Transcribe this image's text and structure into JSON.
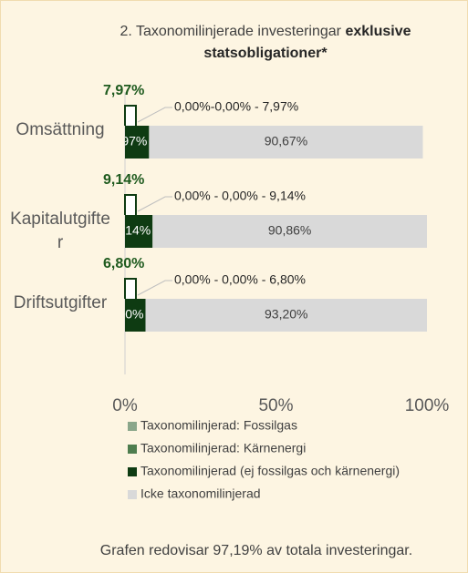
{
  "chart_data": {
    "type": "stacked-bar-horizontal",
    "title": "2. Taxonomilinjerade investeringar",
    "title_bold": "exklusive statsobligationer*",
    "categories": [
      "Omsättning",
      "Kapitalutgifter",
      "Driftsutgifter"
    ],
    "series": [
      {
        "name": "Taxonomilinjerad: Fossilgas",
        "color": "#8aa68a",
        "values": [
          0,
          0,
          0
        ]
      },
      {
        "name": "Taxonomilinjerad: Kärnenergi",
        "color": "#4e7d4e",
        "values": [
          0,
          0,
          0
        ]
      },
      {
        "name": "Taxonomilinjerad (ej fossilgas och kärnenergi)",
        "color": "#0e3b12",
        "values": [
          7.97,
          9.14,
          6.8
        ],
        "value_labels": [
          "7,97%",
          "9,14%",
          "6,80%"
        ]
      },
      {
        "name": "Icke taxonomilinjerad",
        "color": "#d9d9d9",
        "values": [
          90.67,
          90.86,
          93.2
        ],
        "value_labels": [
          "90,67%",
          "90,86%",
          "93,20%"
        ]
      }
    ],
    "callouts": [
      "0,00%-0,00% - 7,97%",
      "0,00% - 0,00% - 9,14%",
      "0,00% - 0,00% - 6,80%"
    ],
    "xlim": [
      0,
      100
    ],
    "xticks": [
      {
        "value": 0,
        "label": "0%"
      },
      {
        "value": 50,
        "label": "50%"
      },
      {
        "value": 100,
        "label": "100%"
      }
    ],
    "note": "Grafen redovisar 97,19% av totala investeringar."
  }
}
